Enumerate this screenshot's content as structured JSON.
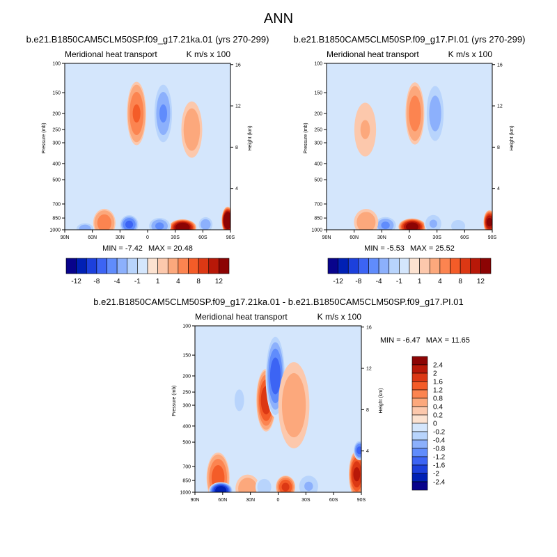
{
  "page": {
    "title": "ANN"
  },
  "chart_data": [
    {
      "type": "heatmap",
      "id": "top-left",
      "title": "b.e21.B1850CAM5CLM50SP.f09_g17.21ka.01 (yrs 270-299)",
      "subtitle_left": "Meridional heat transport",
      "subtitle_right": "K m/s x 100",
      "ylabel": "Pressure (mb)",
      "ylabel_right": "Height (km)",
      "pressure_ticks": [
        "100",
        "150",
        "200",
        "250",
        "300",
        "400",
        "500",
        "700",
        "850",
        "1000"
      ],
      "pressure_values": [
        100,
        150,
        200,
        250,
        300,
        400,
        500,
        700,
        850,
        1000
      ],
      "height_ticks": [
        "16",
        "12",
        "8",
        "4"
      ],
      "height_values": [
        16,
        12,
        8,
        4
      ],
      "x_ticks": [
        "90N",
        "60N",
        "30N",
        "0",
        "30S",
        "60S",
        "90S"
      ],
      "x_values": [
        90,
        60,
        30,
        0,
        -30,
        -60,
        -90
      ],
      "xlim": [
        90,
        -90
      ],
      "ylim": [
        1000,
        100
      ],
      "min_label": "MIN =  -7.42",
      "max_label": "MAX =  20.48",
      "features": [
        {
          "lat": 12,
          "p": 200,
          "value": 6,
          "wlat": 4,
          "wp": 45
        },
        {
          "lat": -17,
          "p": 200,
          "value": -6,
          "wlat": 4,
          "wp": 45
        },
        {
          "lat": -48,
          "p": 250,
          "value": 3,
          "wlat": 5,
          "wp": 55
        },
        {
          "lat": -38,
          "p": 970,
          "value": 14,
          "wlat": 6,
          "wp": 40
        },
        {
          "lat": -13,
          "p": 950,
          "value": -6,
          "wlat": 5,
          "wp": 45
        },
        {
          "lat": 20,
          "p": 930,
          "value": -8,
          "wlat": 4,
          "wp": 50
        },
        {
          "lat": 47,
          "p": 910,
          "value": 5,
          "wlat": 5,
          "wp": 80
        },
        {
          "lat": 68,
          "p": 990,
          "value": -5,
          "wlat": 4,
          "wp": 30
        },
        {
          "lat": -63,
          "p": 930,
          "value": -5,
          "wlat": 3,
          "wp": 40
        },
        {
          "lat": -87,
          "p": 880,
          "value": 16,
          "wlat": 2,
          "wp": 70
        }
      ]
    },
    {
      "type": "heatmap",
      "id": "top-right",
      "title": "b.e21.B1850CAM5CLM50SP.f09_g17.PI.01 (yrs 270-299)",
      "subtitle_left": "Meridional heat transport",
      "subtitle_right": "K m/s x 100",
      "ylabel": "Pressure (mb)",
      "ylabel_right": "Height (km)",
      "pressure_ticks": [
        "100",
        "150",
        "200",
        "250",
        "300",
        "400",
        "500",
        "700",
        "850",
        "1000"
      ],
      "pressure_values": [
        100,
        150,
        200,
        250,
        300,
        400,
        500,
        700,
        850,
        1000
      ],
      "height_ticks": [
        "16",
        "12",
        "8",
        "4"
      ],
      "height_values": [
        16,
        12,
        8,
        4
      ],
      "x_ticks": [
        "90N",
        "60N",
        "30N",
        "0",
        "30S",
        "60S",
        "90S"
      ],
      "x_values": [
        90,
        60,
        30,
        0,
        -30,
        -60,
        -90
      ],
      "xlim": [
        90,
        -90
      ],
      "ylim": [
        1000,
        100
      ],
      "min_label": "MIN =  -5.53",
      "max_label": "MAX =  25.52",
      "features": [
        {
          "lat": -6,
          "p": 200,
          "value": 5,
          "wlat": 4,
          "wp": 45
        },
        {
          "lat": -28,
          "p": 200,
          "value": -5,
          "wlat": 4,
          "wp": 45
        },
        {
          "lat": 48,
          "p": 250,
          "value": 2,
          "wlat": 6,
          "wp": 60
        },
        {
          "lat": -3,
          "p": 960,
          "value": 13,
          "wlat": 6,
          "wp": 40
        },
        {
          "lat": 26,
          "p": 940,
          "value": -6,
          "wlat": 5,
          "wp": 45
        },
        {
          "lat": -26,
          "p": 920,
          "value": -4,
          "wlat": 4,
          "wp": 55
        },
        {
          "lat": 47,
          "p": 900,
          "value": 3,
          "wlat": 6,
          "wp": 80
        },
        {
          "lat": -53,
          "p": 950,
          "value": -3,
          "wlat": 4,
          "wp": 40
        },
        {
          "lat": -87,
          "p": 900,
          "value": 12,
          "wlat": 2,
          "wp": 60
        }
      ]
    },
    {
      "type": "heatmap",
      "id": "bottom-diff",
      "title": "b.e21.B1850CAM5CLM50SP.f09_g17.21ka.01 - b.e21.B1850CAM5CLM50SP.f09_g17.PI.01",
      "subtitle_left": "Meridional heat transport",
      "subtitle_right": "K m/s x 100",
      "ylabel": "Pressure (mb)",
      "ylabel_right": "Height (km)",
      "pressure_ticks": [
        "100",
        "150",
        "200",
        "250",
        "300",
        "400",
        "500",
        "700",
        "850",
        "1000"
      ],
      "pressure_values": [
        100,
        150,
        200,
        250,
        300,
        400,
        500,
        700,
        850,
        1000
      ],
      "height_ticks": [
        "16",
        "12",
        "8",
        "4"
      ],
      "height_values": [
        16,
        12,
        8,
        4
      ],
      "x_ticks": [
        "90N",
        "60N",
        "30N",
        "0",
        "30S",
        "60S",
        "90S"
      ],
      "x_values": [
        90,
        60,
        30,
        0,
        -30,
        -60,
        -90
      ],
      "xlim": [
        90,
        -90
      ],
      "ylim": [
        1000,
        100
      ],
      "min_label": "MIN =  -6.47",
      "max_label": "MAX =  11.65",
      "features": [
        {
          "lat": 13,
          "p": 280,
          "value": 1.8,
          "wlat": 4,
          "wp": 60
        },
        {
          "lat": 3,
          "p": 200,
          "value": -1.8,
          "wlat": 4,
          "wp": 60
        },
        {
          "lat": -17,
          "p": 300,
          "value": 0.6,
          "wlat": 8,
          "wp": 110
        },
        {
          "lat": 42,
          "p": 280,
          "value": -0.4,
          "wlat": 6,
          "wp": 80
        },
        {
          "lat": 65,
          "p": 820,
          "value": 1.4,
          "wlat": 5,
          "wp": 140
        },
        {
          "lat": 62,
          "p": 975,
          "value": -2.6,
          "wlat": 5,
          "wp": 40
        },
        {
          "lat": 33,
          "p": 950,
          "value": 0.6,
          "wlat": 6,
          "wp": 90
        },
        {
          "lat": -8,
          "p": 930,
          "value": 1.6,
          "wlat": 4,
          "wp": 60
        },
        {
          "lat": 15,
          "p": 930,
          "value": -0.6,
          "wlat": 4,
          "wp": 60
        },
        {
          "lat": -33,
          "p": 920,
          "value": -0.8,
          "wlat": 5,
          "wp": 70
        },
        {
          "lat": -85,
          "p": 780,
          "value": 2.0,
          "wlat": 3,
          "wp": 120
        },
        {
          "lat": -88,
          "p": 560,
          "value": -1.6,
          "wlat": 2,
          "wp": 30
        }
      ]
    }
  ],
  "colorbars": {
    "top_left": {
      "levels": [
        -12,
        -10,
        -8,
        -6,
        -4,
        -2,
        -1,
        0,
        1,
        2,
        4,
        6,
        8,
        10,
        12
      ],
      "labels": [
        "-12",
        "-8",
        "-4",
        "-1",
        "1",
        "4",
        "8",
        "12"
      ]
    },
    "top_right": {
      "levels": [
        -12,
        -10,
        -8,
        -6,
        -4,
        -2,
        -1,
        0,
        1,
        2,
        4,
        6,
        8,
        10,
        12
      ],
      "labels": [
        "-12",
        "-8",
        "-4",
        "-1",
        "1",
        "4",
        "8",
        "12"
      ]
    },
    "diff": {
      "levels": [
        2.4,
        2,
        1.6,
        1.2,
        0.8,
        0.4,
        0.2,
        0,
        -0.2,
        -0.4,
        -0.8,
        -1.2,
        -1.6,
        -2,
        -2.4
      ],
      "labels": [
        "2.4",
        "2",
        "1.6",
        "1.2",
        "0.8",
        "0.4",
        "0.2",
        "0",
        "-0.2",
        "-0.4",
        "-0.8",
        "-1.2",
        "-1.6",
        "-2",
        "-2.4"
      ]
    }
  },
  "palette": [
    "#08038c",
    "#0020b4",
    "#1c40dc",
    "#3c64f4",
    "#608cfc",
    "#8cb0fc",
    "#b8d4fc",
    "#d4e6fc",
    "#fce2d0",
    "#fcc8ac",
    "#fca87c",
    "#fc8450",
    "#f45c28",
    "#dc3814",
    "#b81808",
    "#8c0404"
  ]
}
